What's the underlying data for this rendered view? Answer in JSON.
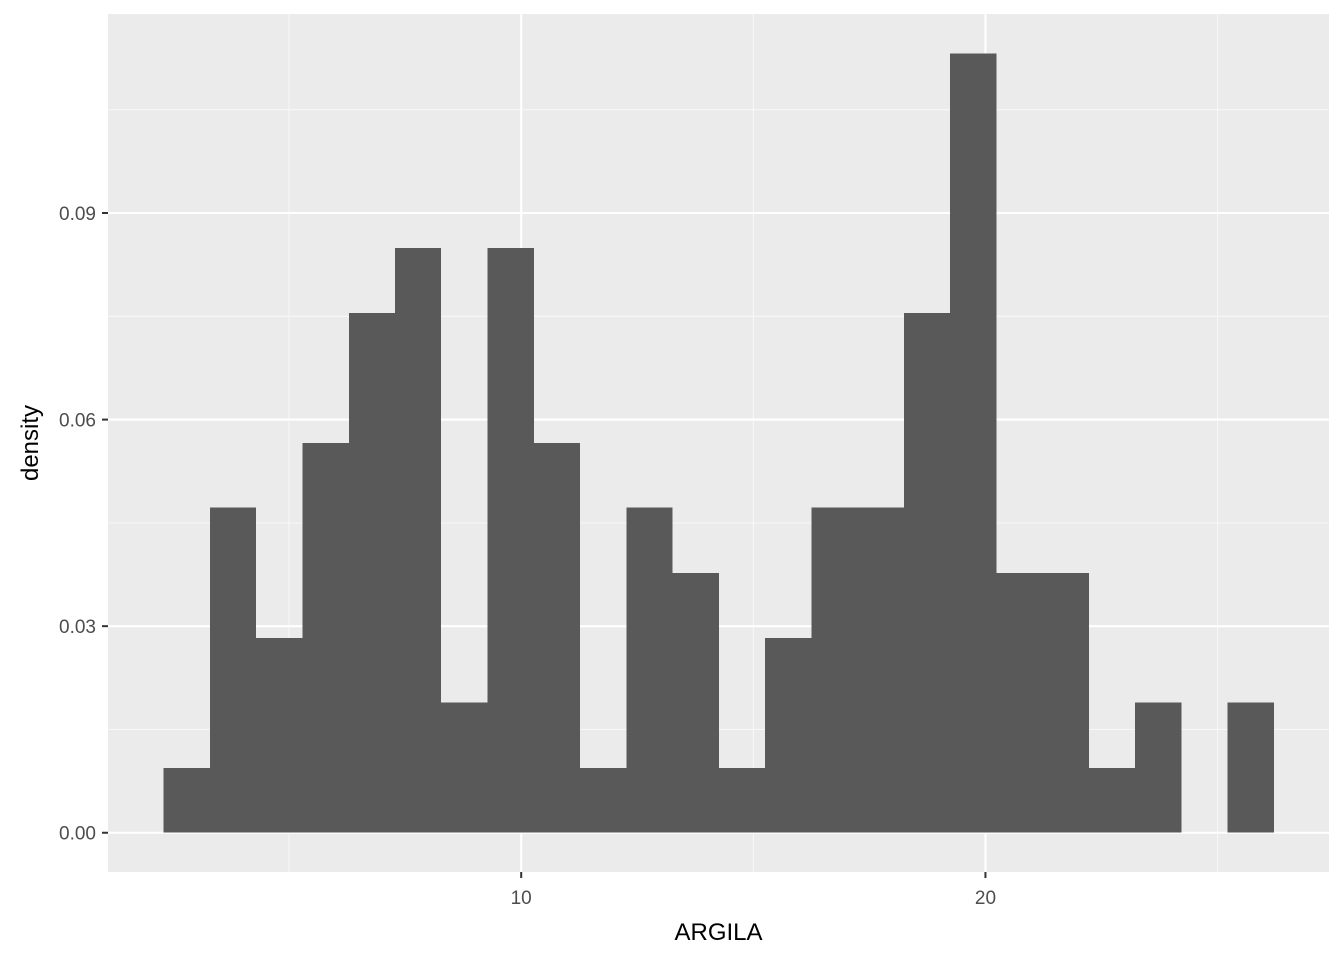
{
  "chart_data": {
    "type": "bar",
    "title": "",
    "xlabel": "ARGILA",
    "ylabel": "density",
    "bin_width": 0.9964,
    "bins": [
      {
        "x_start": 2.3,
        "x_end": 3.296,
        "density": 0.0094
      },
      {
        "x_start": 3.296,
        "x_end": 4.293,
        "density": 0.0472
      },
      {
        "x_start": 4.293,
        "x_end": 5.289,
        "density": 0.0283
      },
      {
        "x_start": 5.289,
        "x_end": 6.286,
        "density": 0.0566
      },
      {
        "x_start": 6.286,
        "x_end": 7.282,
        "density": 0.0755
      },
      {
        "x_start": 7.282,
        "x_end": 8.278,
        "density": 0.0849
      },
      {
        "x_start": 8.278,
        "x_end": 9.275,
        "density": 0.0189
      },
      {
        "x_start": 9.275,
        "x_end": 10.271,
        "density": 0.0849
      },
      {
        "x_start": 10.271,
        "x_end": 11.268,
        "density": 0.0566
      },
      {
        "x_start": 11.268,
        "x_end": 12.264,
        "density": 0.0094
      },
      {
        "x_start": 12.264,
        "x_end": 13.26,
        "density": 0.0472
      },
      {
        "x_start": 13.26,
        "x_end": 14.257,
        "density": 0.0377
      },
      {
        "x_start": 14.257,
        "x_end": 15.253,
        "density": 0.0094
      },
      {
        "x_start": 15.253,
        "x_end": 16.25,
        "density": 0.0283
      },
      {
        "x_start": 16.25,
        "x_end": 17.246,
        "density": 0.0472
      },
      {
        "x_start": 17.246,
        "x_end": 18.242,
        "density": 0.0472
      },
      {
        "x_start": 18.242,
        "x_end": 19.239,
        "density": 0.0755
      },
      {
        "x_start": 19.239,
        "x_end": 20.235,
        "density": 0.1132
      },
      {
        "x_start": 20.235,
        "x_end": 21.232,
        "density": 0.0377
      },
      {
        "x_start": 21.232,
        "x_end": 22.228,
        "density": 0.0377
      },
      {
        "x_start": 22.228,
        "x_end": 23.224,
        "density": 0.0094
      },
      {
        "x_start": 23.224,
        "x_end": 24.221,
        "density": 0.0189
      },
      {
        "x_start": 24.221,
        "x_end": 25.217,
        "density": 0.0
      },
      {
        "x_start": 25.217,
        "x_end": 26.214,
        "density": 0.0189
      }
    ],
    "xlim": [
      1.1,
      27.4
    ],
    "ylim": [
      -0.0057,
      0.1189
    ],
    "x_ticks": [
      10,
      20
    ],
    "x_tick_labels": [
      "10",
      "20"
    ],
    "x_minor_ticks": [
      5,
      15,
      25
    ],
    "y_ticks": [
      0.0,
      0.03,
      0.06,
      0.09
    ],
    "y_tick_labels": [
      "0.00",
      "0.03",
      "0.06",
      "0.09"
    ],
    "y_minor_ticks": [
      0.015,
      0.045,
      0.075,
      0.105
    ],
    "grid": true,
    "colors": {
      "bar_fill": "#595959",
      "panel_background": "#ebebeb",
      "grid_major": "#ffffff",
      "grid_minor": "#f7f7f7",
      "tick_mark": "#333333",
      "tick_label": "#4d4d4d"
    }
  }
}
